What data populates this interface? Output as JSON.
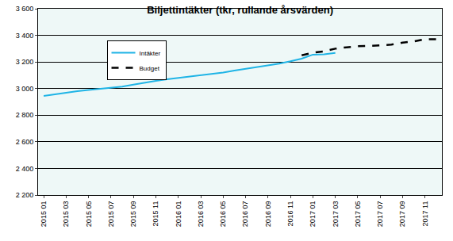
{
  "chart_data": {
    "type": "line",
    "title": "Biljettintäkter (tkr, rullande årsvärden)",
    "categories": [
      "2015 01",
      null,
      "2015 03",
      null,
      "2015 05",
      null,
      "2015 07",
      null,
      "2015 09",
      null,
      "2015 11",
      null,
      "2016 01",
      null,
      "2016 03",
      null,
      "2016 05",
      null,
      "2016 07",
      null,
      "2016 09",
      null,
      "2016 11",
      null,
      "2017 01",
      null,
      "2017 03",
      null,
      "2017 05",
      null,
      "2017 07",
      null,
      "2017 09",
      null,
      "2017 11",
      null
    ],
    "series": [
      {
        "name": "Intäkter",
        "color": "#1fb4e6",
        "line_style": "solid",
        "values": [
          2945,
          2958,
          2970,
          2980,
          2990,
          2998,
          3008,
          3015,
          3030,
          3045,
          3058,
          3070,
          3080,
          3090,
          3100,
          3108,
          3120,
          3135,
          3148,
          3165,
          3178,
          3188,
          3205,
          3225,
          3255,
          3258,
          3268,
          null,
          null,
          null,
          null,
          null,
          null,
          null,
          null,
          null
        ]
      },
      {
        "name": "Budget",
        "color": "#000000",
        "line_style": "dash",
        "values": [
          null,
          null,
          null,
          null,
          null,
          null,
          null,
          null,
          null,
          null,
          null,
          null,
          null,
          null,
          null,
          null,
          null,
          null,
          null,
          null,
          null,
          null,
          null,
          3250,
          3270,
          3280,
          3300,
          3310,
          3318,
          3320,
          3325,
          3330,
          3345,
          3355,
          3370,
          3370
        ]
      }
    ],
    "ylim": [
      2200,
      3600
    ],
    "yticks": [
      {
        "value": 2200,
        "label": "2 200"
      },
      {
        "value": 2400,
        "label": "2 400"
      },
      {
        "value": 2600,
        "label": "2 600"
      },
      {
        "value": 2800,
        "label": "2 800"
      },
      {
        "value": 3000,
        "label": "3 000"
      },
      {
        "value": 3200,
        "label": "3 200"
      },
      {
        "value": 3400,
        "label": "3 400"
      },
      {
        "value": 3600,
        "label": "3 600"
      }
    ],
    "grid": true,
    "legend": "upper left"
  }
}
